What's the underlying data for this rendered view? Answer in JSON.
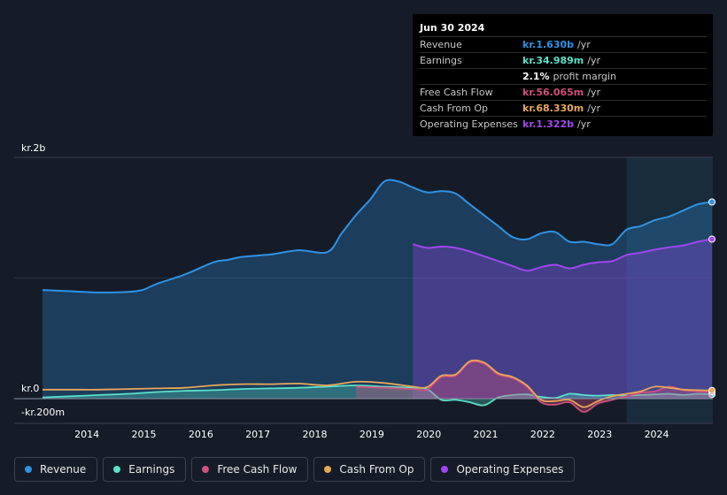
{
  "tooltip": {
    "date": "Jun 30 2024",
    "rows": [
      {
        "label": "Revenue",
        "value": "kr.1.630b",
        "unit": "/yr",
        "color": "#2e93e6"
      },
      {
        "label": "Earnings",
        "value": "kr.34.989m",
        "unit": "/yr",
        "color": "#5be0c9"
      },
      {
        "label": "",
        "value": "2.1%",
        "unit": "profit margin",
        "color": "#ffffff"
      },
      {
        "label": "Free Cash Flow",
        "value": "kr.56.065m",
        "unit": "/yr",
        "color": "#d0507e"
      },
      {
        "label": "Cash From Op",
        "value": "kr.68.330m",
        "unit": "/yr",
        "color": "#e8a85a"
      },
      {
        "label": "Operating Expenses",
        "value": "kr.1.322b",
        "unit": "/yr",
        "color": "#a245f0"
      }
    ]
  },
  "legend": [
    {
      "label": "Revenue",
      "color": "#2e93e6"
    },
    {
      "label": "Earnings",
      "color": "#5be0c9"
    },
    {
      "label": "Free Cash Flow",
      "color": "#d0507e"
    },
    {
      "label": "Cash From Op",
      "color": "#e8a85a"
    },
    {
      "label": "Operating Expenses",
      "color": "#a245f0"
    }
  ],
  "chart_data": {
    "type": "area",
    "title": "",
    "xlabel": "",
    "ylabel": "",
    "y_axis_labels": {
      "top": "kr.2b",
      "zero": "kr.0",
      "bottom": "-kr.200m"
    },
    "ylim": [
      -200,
      2000
    ],
    "xlim": [
      2013.0,
      2024.5
    ],
    "x_ticks": [
      "2014",
      "2015",
      "2016",
      "2017",
      "2018",
      "2019",
      "2020",
      "2021",
      "2022",
      "2023",
      "2024"
    ],
    "x_tick_values": [
      2013.5,
      2014.5,
      2015.5,
      2016.5,
      2017.5,
      2018.5,
      2019.5,
      2020.5,
      2021.5,
      2022.5,
      2023.5
    ],
    "highlight_start": 2023.25,
    "units": "kr. millions",
    "series": [
      {
        "name": "Revenue",
        "color": "#2e93e6",
        "fill": true,
        "points": [
          [
            2013.0,
            900
          ],
          [
            2013.5,
            890
          ],
          [
            2014.0,
            880
          ],
          [
            2014.5,
            885
          ],
          [
            2014.75,
            900
          ],
          [
            2015.0,
            950
          ],
          [
            2015.5,
            1030
          ],
          [
            2016.0,
            1130
          ],
          [
            2016.25,
            1150
          ],
          [
            2016.5,
            1175
          ],
          [
            2017.0,
            1195
          ],
          [
            2017.5,
            1230
          ],
          [
            2018.0,
            1215
          ],
          [
            2018.25,
            1370
          ],
          [
            2018.5,
            1520
          ],
          [
            2018.75,
            1650
          ],
          [
            2019.0,
            1800
          ],
          [
            2019.25,
            1800
          ],
          [
            2019.5,
            1750
          ],
          [
            2019.75,
            1710
          ],
          [
            2020.0,
            1720
          ],
          [
            2020.25,
            1700
          ],
          [
            2020.5,
            1610
          ],
          [
            2020.75,
            1520
          ],
          [
            2021.0,
            1430
          ],
          [
            2021.25,
            1340
          ],
          [
            2021.5,
            1320
          ],
          [
            2021.75,
            1370
          ],
          [
            2022.0,
            1380
          ],
          [
            2022.25,
            1300
          ],
          [
            2022.5,
            1300
          ],
          [
            2022.75,
            1280
          ],
          [
            2023.0,
            1280
          ],
          [
            2023.25,
            1400
          ],
          [
            2023.5,
            1430
          ],
          [
            2023.75,
            1480
          ],
          [
            2024.0,
            1510
          ],
          [
            2024.25,
            1560
          ],
          [
            2024.5,
            1610
          ],
          [
            2024.75,
            1630
          ]
        ]
      },
      {
        "name": "Operating Expenses",
        "color": "#a245f0",
        "fill": true,
        "points": [
          [
            2019.5,
            1280
          ],
          [
            2019.75,
            1250
          ],
          [
            2020.0,
            1260
          ],
          [
            2020.25,
            1250
          ],
          [
            2020.5,
            1220
          ],
          [
            2020.75,
            1180
          ],
          [
            2021.0,
            1140
          ],
          [
            2021.25,
            1100
          ],
          [
            2021.5,
            1060
          ],
          [
            2021.75,
            1090
          ],
          [
            2022.0,
            1110
          ],
          [
            2022.25,
            1080
          ],
          [
            2022.5,
            1110
          ],
          [
            2022.75,
            1130
          ],
          [
            2023.0,
            1140
          ],
          [
            2023.25,
            1190
          ],
          [
            2023.5,
            1210
          ],
          [
            2023.75,
            1235
          ],
          [
            2024.0,
            1255
          ],
          [
            2024.25,
            1270
          ],
          [
            2024.5,
            1300
          ],
          [
            2024.75,
            1322
          ]
        ]
      },
      {
        "name": "Earnings",
        "color": "#5be0c9",
        "fill": true,
        "points": [
          [
            2013.0,
            10
          ],
          [
            2013.5,
            20
          ],
          [
            2014.0,
            30
          ],
          [
            2014.5,
            40
          ],
          [
            2015.0,
            55
          ],
          [
            2015.5,
            65
          ],
          [
            2016.0,
            70
          ],
          [
            2016.5,
            80
          ],
          [
            2017.0,
            85
          ],
          [
            2017.5,
            90
          ],
          [
            2018.0,
            100
          ],
          [
            2018.5,
            110
          ],
          [
            2019.0,
            100
          ],
          [
            2019.5,
            90
          ],
          [
            2019.75,
            80
          ],
          [
            2020.0,
            -10
          ],
          [
            2020.25,
            -10
          ],
          [
            2020.5,
            -30
          ],
          [
            2020.75,
            -55
          ],
          [
            2021.0,
            10
          ],
          [
            2021.25,
            30
          ],
          [
            2021.5,
            35
          ],
          [
            2021.75,
            15
          ],
          [
            2022.0,
            5
          ],
          [
            2022.25,
            40
          ],
          [
            2022.5,
            30
          ],
          [
            2022.75,
            25
          ],
          [
            2023.0,
            30
          ],
          [
            2023.25,
            25
          ],
          [
            2023.5,
            30
          ],
          [
            2023.75,
            35
          ],
          [
            2024.0,
            40
          ],
          [
            2024.25,
            30
          ],
          [
            2024.5,
            40
          ],
          [
            2024.75,
            35
          ]
        ]
      },
      {
        "name": "Free Cash Flow",
        "color": "#d0507e",
        "fill": true,
        "points": [
          [
            2018.5,
            100
          ],
          [
            2019.0,
            90
          ],
          [
            2019.5,
            80
          ],
          [
            2019.75,
            75
          ],
          [
            2020.0,
            180
          ],
          [
            2020.25,
            190
          ],
          [
            2020.5,
            300
          ],
          [
            2020.75,
            290
          ],
          [
            2021.0,
            200
          ],
          [
            2021.25,
            170
          ],
          [
            2021.5,
            100
          ],
          [
            2021.75,
            -30
          ],
          [
            2022.0,
            -50
          ],
          [
            2022.25,
            -30
          ],
          [
            2022.5,
            -110
          ],
          [
            2022.75,
            -40
          ],
          [
            2023.0,
            -10
          ],
          [
            2023.25,
            20
          ],
          [
            2023.5,
            50
          ],
          [
            2023.75,
            60
          ],
          [
            2024.0,
            100
          ],
          [
            2024.25,
            70
          ],
          [
            2024.5,
            60
          ],
          [
            2024.75,
            56
          ]
        ]
      },
      {
        "name": "Cash From Op",
        "color": "#e8a85a",
        "fill": false,
        "points": [
          [
            2013.0,
            75
          ],
          [
            2013.5,
            75
          ],
          [
            2014.0,
            75
          ],
          [
            2014.5,
            80
          ],
          [
            2015.0,
            85
          ],
          [
            2015.5,
            90
          ],
          [
            2016.0,
            110
          ],
          [
            2016.5,
            120
          ],
          [
            2017.0,
            120
          ],
          [
            2017.5,
            125
          ],
          [
            2018.0,
            110
          ],
          [
            2018.5,
            140
          ],
          [
            2019.0,
            130
          ],
          [
            2019.5,
            100
          ],
          [
            2019.75,
            95
          ],
          [
            2020.0,
            190
          ],
          [
            2020.25,
            200
          ],
          [
            2020.5,
            310
          ],
          [
            2020.75,
            300
          ],
          [
            2021.0,
            210
          ],
          [
            2021.25,
            180
          ],
          [
            2021.5,
            110
          ],
          [
            2021.75,
            -10
          ],
          [
            2022.0,
            -20
          ],
          [
            2022.25,
            -10
          ],
          [
            2022.5,
            -70
          ],
          [
            2022.75,
            -20
          ],
          [
            2023.0,
            20
          ],
          [
            2023.25,
            40
          ],
          [
            2023.5,
            60
          ],
          [
            2023.75,
            100
          ],
          [
            2024.0,
            90
          ],
          [
            2024.25,
            75
          ],
          [
            2024.5,
            70
          ],
          [
            2024.75,
            68
          ]
        ]
      }
    ]
  }
}
